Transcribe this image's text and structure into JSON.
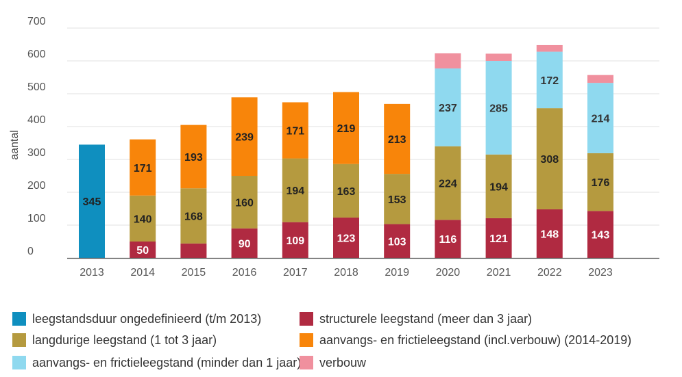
{
  "chart_data": {
    "type": "bar",
    "stacked": true,
    "title": "",
    "xlabel": "",
    "ylabel": "aantal",
    "ylim": [
      0,
      700
    ],
    "yticks": [
      0,
      100,
      200,
      300,
      400,
      500,
      600,
      700
    ],
    "grid": true,
    "legend_position": "bottom",
    "categories": [
      "2013",
      "2014",
      "2015",
      "2016",
      "2017",
      "2018",
      "2019",
      "2020",
      "2021",
      "2022",
      "2023"
    ],
    "series": [
      {
        "name": "leegstandsduur ongedefinieerd (t/m 2013)",
        "color": "#0f8fbf",
        "values": [
          345,
          0,
          0,
          0,
          0,
          0,
          0,
          0,
          0,
          0,
          0
        ],
        "labels": [
          "345",
          "",
          "",
          "",
          "",
          "",
          "",
          "",
          "",
          "",
          ""
        ],
        "label_color": "#222222"
      },
      {
        "name": "structurele leegstand (meer dan 3 jaar)",
        "color": "#b02a41",
        "values": [
          0,
          50,
          44,
          90,
          109,
          123,
          103,
          116,
          121,
          148,
          143
        ],
        "labels": [
          "",
          "50",
          "",
          "90",
          "109",
          "123",
          "103",
          "116",
          "121",
          "148",
          "143"
        ],
        "label_color": "#ffffff"
      },
      {
        "name": "langdurige leegstand (1 tot 3 jaar)",
        "color": "#b59a3f",
        "values": [
          0,
          140,
          168,
          160,
          194,
          163,
          153,
          224,
          194,
          308,
          176
        ],
        "labels": [
          "",
          "140",
          "168",
          "160",
          "194",
          "163",
          "153",
          "224",
          "194",
          "308",
          "176"
        ],
        "label_color": "#222222"
      },
      {
        "name": "aanvangs- en frictieleegstand (incl.verbouw) (2014-2019)",
        "color": "#f8850a",
        "values": [
          0,
          171,
          193,
          239,
          171,
          219,
          213,
          0,
          0,
          0,
          0
        ],
        "labels": [
          "",
          "171",
          "193",
          "239",
          "171",
          "219",
          "213",
          "",
          "",
          "",
          ""
        ],
        "label_color": "#222222"
      },
      {
        "name": "aanvangs- en frictieleegstand (minder dan 1 jaar)",
        "color": "#8fd9ef",
        "values": [
          0,
          0,
          0,
          0,
          0,
          0,
          0,
          237,
          285,
          172,
          214
        ],
        "labels": [
          "",
          "",
          "",
          "",
          "",
          "",
          "",
          "237",
          "285",
          "172",
          "214"
        ],
        "label_color": "#333333"
      },
      {
        "name": "verbouw",
        "color": "#f0909e",
        "values": [
          0,
          0,
          0,
          0,
          0,
          0,
          0,
          46,
          22,
          20,
          24
        ],
        "labels": [
          "",
          "",
          "",
          "",
          "",
          "",
          "",
          "",
          "",
          "",
          ""
        ],
        "label_color": "#333333"
      }
    ]
  }
}
